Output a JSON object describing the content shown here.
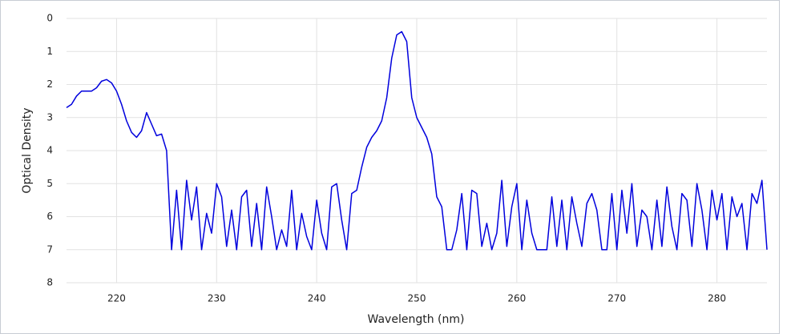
{
  "chart_data": {
    "type": "line",
    "x_label": "Wavelength (nm)",
    "y_label": "Optical Density",
    "xlim": [
      215,
      285
    ],
    "xticks": [
      220,
      230,
      240,
      250,
      260,
      270,
      280
    ],
    "ylim": [
      0,
      8
    ],
    "yticks": [
      0,
      1,
      2,
      3,
      4,
      5,
      6,
      7,
      8
    ],
    "y_inverted": true,
    "grid": true,
    "series": [
      {
        "color": "#0000dd",
        "x": [
          215,
          215.5,
          216,
          216.5,
          217,
          217.5,
          218,
          218.5,
          219,
          219.5,
          220,
          220.5,
          221,
          221.5,
          222,
          222.5,
          223,
          223.5,
          224,
          224.5,
          225,
          225.5,
          226,
          226.5,
          227,
          227.5,
          228,
          228.5,
          229,
          229.5,
          230,
          230.5,
          231,
          231.5,
          232,
          232.5,
          233,
          233.5,
          234,
          234.5,
          235,
          235.5,
          236,
          236.5,
          237,
          237.5,
          238,
          238.5,
          239,
          239.5,
          240,
          240.5,
          241,
          241.5,
          242,
          242.5,
          243,
          243.5,
          244,
          244.5,
          245,
          245.5,
          246,
          246.5,
          247,
          247.5,
          248,
          248.5,
          249,
          249.5,
          250,
          250.5,
          251,
          251.5,
          252,
          252.5,
          253,
          253.5,
          254,
          254.5,
          255,
          255.5,
          256,
          256.5,
          257,
          257.5,
          258,
          258.5,
          259,
          259.5,
          260,
          260.5,
          261,
          261.5,
          262,
          262.5,
          263,
          263.5,
          264,
          264.5,
          265,
          265.5,
          266,
          266.5,
          267,
          267.5,
          268,
          268.5,
          269,
          269.5,
          270,
          270.5,
          271,
          271.5,
          272,
          272.5,
          273,
          273.5,
          274,
          274.5,
          275,
          275.5,
          276,
          276.5,
          277,
          277.5,
          278,
          278.5,
          279,
          279.5,
          280,
          280.5,
          281,
          281.5,
          282,
          282.5,
          283,
          283.5,
          284,
          284.5,
          285
        ],
        "values": [
          2.7,
          2.6,
          2.35,
          2.2,
          2.2,
          2.2,
          2.1,
          1.9,
          1.85,
          1.95,
          2.2,
          2.6,
          3.1,
          3.45,
          3.6,
          3.4,
          2.85,
          3.2,
          3.55,
          3.5,
          4.0,
          7,
          5.2,
          7,
          4.9,
          6.1,
          5.1,
          7,
          5.9,
          6.5,
          5.0,
          5.4,
          6.9,
          5.8,
          7,
          5.4,
          5.2,
          6.9,
          5.6,
          7,
          5.1,
          6.0,
          7,
          6.4,
          6.9,
          5.2,
          7,
          5.9,
          6.6,
          7,
          5.5,
          6.5,
          7,
          5.1,
          5.0,
          6.1,
          7,
          5.3,
          5.2,
          4.5,
          3.9,
          3.6,
          3.4,
          3.1,
          2.4,
          1.2,
          0.5,
          0.4,
          0.7,
          2.4,
          3.0,
          3.3,
          3.6,
          4.1,
          5.4,
          5.7,
          7,
          7,
          6.4,
          5.3,
          7,
          5.2,
          5.3,
          6.9,
          6.2,
          7,
          6.5,
          4.9,
          6.9,
          5.7,
          5.0,
          7,
          5.5,
          6.5,
          7,
          7,
          7,
          5.4,
          6.9,
          5.5,
          7,
          5.4,
          6.2,
          6.9,
          5.6,
          5.3,
          5.8,
          7,
          7,
          5.3,
          7,
          5.2,
          6.5,
          5.0,
          6.9,
          5.8,
          6.0,
          7,
          5.5,
          6.9,
          5.1,
          6.3,
          7,
          5.3,
          5.5,
          6.9,
          5.0,
          5.8,
          7,
          5.2,
          6.1,
          5.3,
          7,
          5.4,
          6.0,
          5.6,
          7,
          5.3,
          5.6,
          4.9,
          7
        ]
      }
    ]
  }
}
